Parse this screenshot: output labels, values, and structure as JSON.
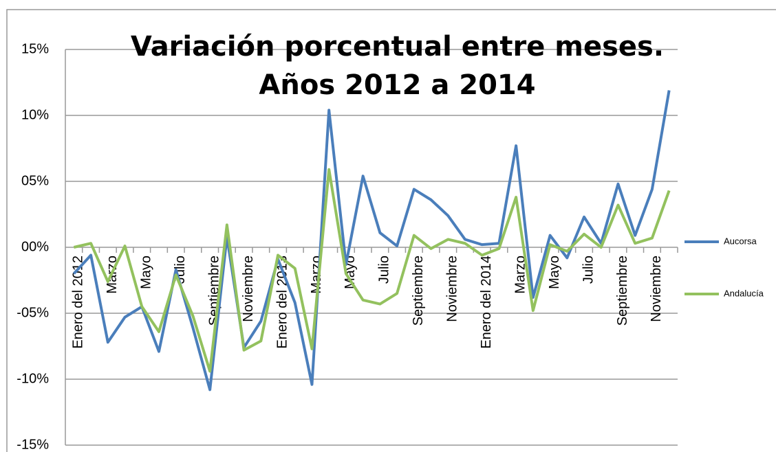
{
  "chart_data": {
    "type": "line",
    "title": "Variación porcentual entre meses. Años 2012 a 2014",
    "categories": [
      "Enero del 2012",
      null,
      "Marzo",
      null,
      "Mayo",
      null,
      "Julio",
      null,
      "Septiembre",
      null,
      "Noviembre",
      null,
      "Enero del 2013",
      null,
      "Marzo",
      null,
      "Mayo",
      null,
      "Julio",
      null,
      "Septiembre",
      null,
      "Noviembre",
      null,
      "Enero del 2014",
      null,
      "Marzo",
      null,
      "Mayo",
      null,
      "Julio",
      null,
      "Septiembre",
      null,
      "Noviembre",
      null
    ],
    "series": [
      {
        "name": "Aucorsa",
        "color": "#4a7ebb",
        "values": [
          -2.0,
          -0.6,
          -7.2,
          -5.3,
          -4.5,
          -7.9,
          -1.7,
          -6.1,
          -10.8,
          0.8,
          -7.6,
          -5.6,
          -0.9,
          -4.2,
          -10.4,
          10.4,
          -1.3,
          5.4,
          1.1,
          0.1,
          4.4,
          3.6,
          2.4,
          0.6,
          0.2,
          0.3,
          7.7,
          -3.8,
          0.9,
          -0.8,
          2.3,
          0.3,
          4.8,
          0.9,
          4.4,
          11.9
        ]
      },
      {
        "name": "Andalucía",
        "color": "#93c15e",
        "values": [
          0.0,
          0.3,
          -2.6,
          0.1,
          -4.5,
          -6.4,
          -2.1,
          -5.2,
          -9.4,
          1.7,
          -7.8,
          -7.1,
          -0.6,
          -1.6,
          -7.7,
          5.9,
          -2.0,
          -4.0,
          -4.3,
          -3.5,
          0.9,
          -0.1,
          0.6,
          0.3,
          -0.6,
          -0.1,
          3.8,
          -4.8,
          0.2,
          -0.3,
          1.0,
          0.0,
          3.2,
          0.3,
          0.7,
          4.3
        ]
      }
    ],
    "ylim": [
      -15,
      15
    ],
    "yticks": [
      {
        "value": -15,
        "label": "-15%"
      },
      {
        "value": -10,
        "label": "-10%"
      },
      {
        "value": -5,
        "label": "-05%"
      },
      {
        "value": 0,
        "label": "00%"
      },
      {
        "value": 5,
        "label": "05%"
      },
      {
        "value": 10,
        "label": "10%"
      },
      {
        "value": 15,
        "label": "15%"
      }
    ],
    "grid": true,
    "legend": "right"
  }
}
